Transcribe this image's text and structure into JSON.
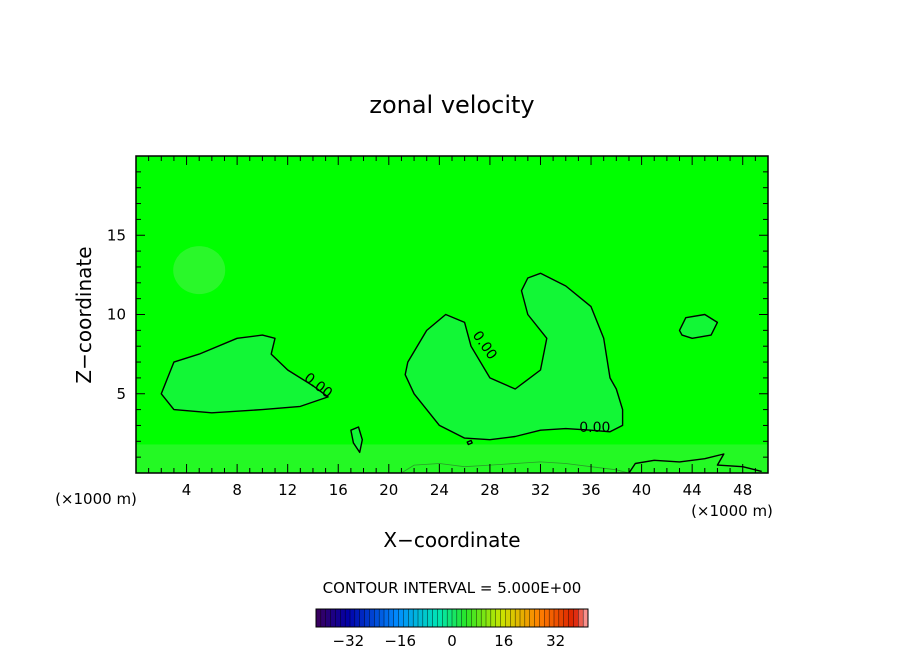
{
  "chart_data": {
    "type": "contour",
    "title": "zonal velocity",
    "xlabel": "X−coordinate",
    "ylabel": "Z−coordinate",
    "x_unit_left": "(×1000 m)",
    "x_unit_right": "(×1000 m)",
    "xlim": [
      0,
      50
    ],
    "ylim": [
      0,
      20
    ],
    "x_ticks": [
      4,
      8,
      12,
      16,
      20,
      24,
      28,
      32,
      36,
      40,
      44,
      48
    ],
    "x_tick_labels": [
      "4",
      "8",
      "12",
      "16",
      "20",
      "24",
      "28",
      "32",
      "36",
      "40",
      "44",
      "48"
    ],
    "y_ticks": [
      5,
      10,
      15
    ],
    "y_tick_labels": [
      "5",
      "10",
      "15"
    ],
    "contour_label": "0.00",
    "contour_interval_text": "CONTOUR INTERVAL = 5.000E+00",
    "colorbar": {
      "range": [
        -42,
        42
      ],
      "ticks": [
        -32,
        -16,
        0,
        16,
        32
      ],
      "tick_labels": [
        "−32",
        "−16",
        "0",
        "16",
        "32"
      ]
    },
    "zero_contours": [
      [
        [
          2.5,
          6
        ],
        [
          3,
          7
        ],
        [
          5,
          7.5
        ],
        [
          8,
          8.5
        ],
        [
          10,
          8.7
        ],
        [
          11,
          8.5
        ],
        [
          10.7,
          7.5
        ],
        [
          12,
          6.5
        ],
        [
          14,
          5.5
        ],
        [
          15.2,
          4.8
        ],
        [
          13,
          4.2
        ],
        [
          10,
          4
        ],
        [
          6,
          3.8
        ],
        [
          3,
          4
        ],
        [
          2,
          5
        ]
      ],
      [
        [
          21.5,
          7
        ],
        [
          23,
          9
        ],
        [
          24.5,
          10
        ],
        [
          26,
          9.5
        ],
        [
          26.5,
          8
        ],
        [
          28,
          6
        ],
        [
          30,
          5.3
        ],
        [
          32,
          6.5
        ],
        [
          32.5,
          8.5
        ],
        [
          31,
          10
        ],
        [
          30.5,
          11.5
        ],
        [
          31,
          12.3
        ],
        [
          32,
          12.6
        ],
        [
          34,
          11.8
        ],
        [
          36,
          10.5
        ],
        [
          37,
          8.5
        ],
        [
          37.5,
          6
        ],
        [
          38,
          5.3
        ],
        [
          38.5,
          4
        ],
        [
          38.5,
          3
        ],
        [
          37.5,
          2.6
        ],
        [
          36,
          2.7
        ],
        [
          34,
          2.8
        ],
        [
          32,
          2.7
        ],
        [
          30,
          2.3
        ],
        [
          28,
          2.1
        ],
        [
          26,
          2.2
        ],
        [
          24,
          3
        ],
        [
          22,
          5
        ],
        [
          21.3,
          6.2
        ]
      ],
      [
        [
          43,
          9
        ],
        [
          43.5,
          9.8
        ],
        [
          45,
          10
        ],
        [
          46,
          9.5
        ],
        [
          45.5,
          8.7
        ],
        [
          44,
          8.5
        ],
        [
          43.2,
          8.7
        ]
      ],
      [
        [
          17,
          2.7
        ],
        [
          17.6,
          2.9
        ],
        [
          17.9,
          2.1
        ],
        [
          17.7,
          1.3
        ],
        [
          17.2,
          1.9
        ]
      ],
      [
        [
          26.2,
          1.95
        ],
        [
          26.5,
          2.05
        ],
        [
          26.6,
          1.9
        ],
        [
          26.3,
          1.8
        ]
      ],
      [
        [
          39,
          0
        ],
        [
          39.5,
          0.6
        ],
        [
          41,
          0.8
        ],
        [
          43,
          0.7
        ],
        [
          45,
          0.9
        ],
        [
          46.5,
          1.2
        ],
        [
          46,
          0.5
        ],
        [
          48,
          0.4
        ],
        [
          49.5,
          0.1
        ]
      ]
    ],
    "weak_contours": [
      [
        [
          21,
          0
        ],
        [
          22,
          0.5
        ],
        [
          24,
          0.6
        ],
        [
          26,
          0.4
        ],
        [
          28,
          0.5
        ],
        [
          30,
          0.6
        ],
        [
          32,
          0.7
        ],
        [
          34,
          0.6
        ],
        [
          36,
          0.4
        ],
        [
          38,
          0.2
        ],
        [
          39,
          0
        ]
      ]
    ],
    "contour_label_positions": [
      [
        14.2,
        5.3
      ],
      [
        27.3,
        7.9
      ],
      [
        36.3,
        2.6
      ]
    ],
    "field_colors": {
      "background": "#00ff00",
      "weak_positive": "#3cf53c",
      "weak_negative": "#21f063",
      "contour": "#000000"
    }
  }
}
